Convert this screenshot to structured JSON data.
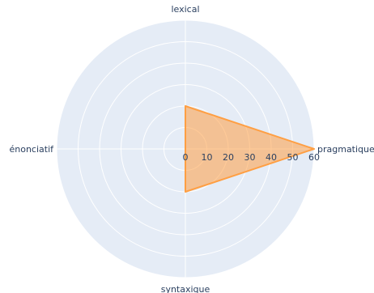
{
  "chart_data": {
    "type": "radar",
    "categories": [
      "pragmatique",
      "lexical",
      "énonciatif",
      "syntaxique"
    ],
    "series": [
      {
        "values": [
          60,
          20,
          0,
          20
        ],
        "color": "#ff9f43",
        "fill_color": "rgba(255,159,67,0.55)"
      }
    ],
    "radial_ticks": [
      "0",
      "10",
      "20",
      "30",
      "40",
      "50",
      "60"
    ],
    "radial_range": [
      0,
      60
    ],
    "grid": true,
    "background_color": "#e5ecf6",
    "grid_color": "#ffffff",
    "text_color": "#2a3f5f"
  }
}
